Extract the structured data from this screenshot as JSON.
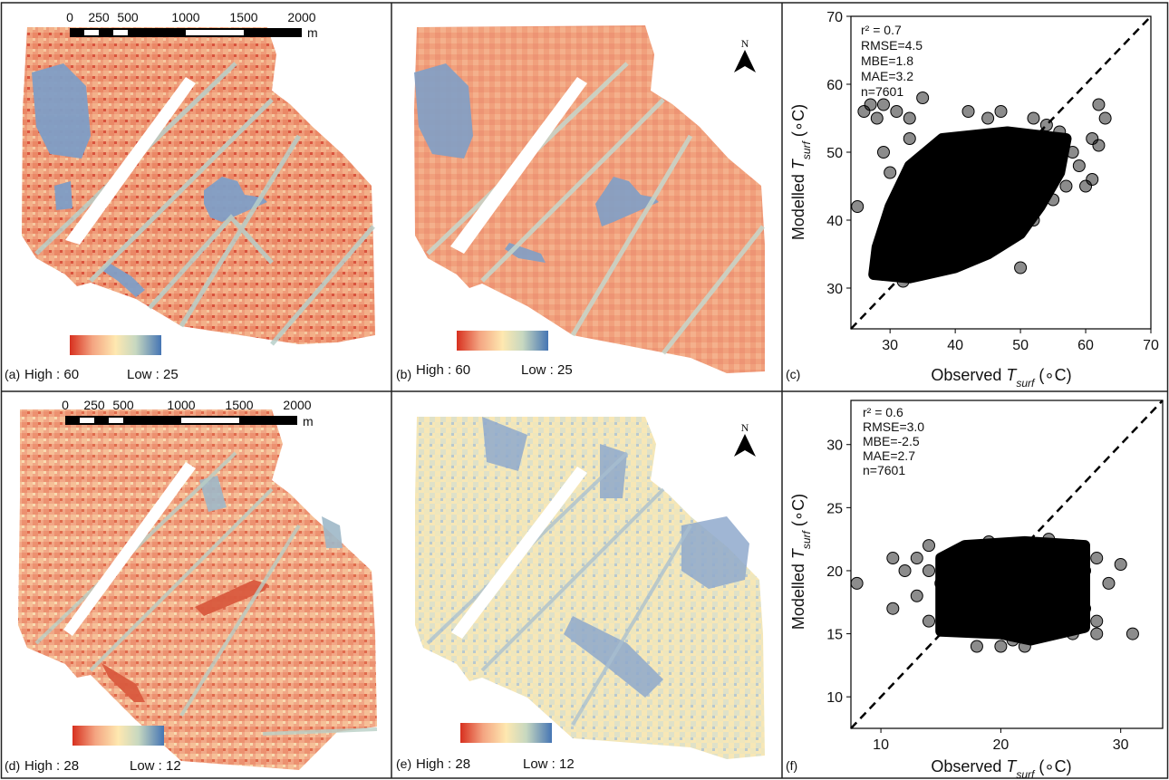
{
  "maps": [
    {
      "id": "a",
      "label": "(a)",
      "legend": {
        "high": "High : 60",
        "low": "Low : 25"
      },
      "scalebar": {
        "ticks": [
          "0",
          "250",
          "500",
          "1000",
          "1500",
          "2000"
        ],
        "unit": "m"
      },
      "north": false,
      "palette": "summer_obs"
    },
    {
      "id": "b",
      "label": "(b)",
      "legend": {
        "high": "High : 60",
        "low": "Low : 25"
      },
      "scalebar": null,
      "north": true,
      "palette": "summer_mod"
    },
    {
      "id": "d",
      "label": "(d)",
      "legend": {
        "high": "High : 28",
        "low": "Low : 12"
      },
      "scalebar": {
        "ticks": [
          "0",
          "250",
          "500",
          "1000",
          "1500",
          "2000"
        ],
        "unit": "m"
      },
      "north": false,
      "palette": "winter_obs"
    },
    {
      "id": "e",
      "label": "(e)",
      "legend": {
        "high": "High : 28",
        "low": "Low : 12"
      },
      "scalebar": null,
      "north": true,
      "palette": "winter_mod"
    }
  ],
  "north_symbol": "N",
  "colors": {
    "ramp": [
      "#d7301f",
      "#f4a582",
      "#fee8b0",
      "#c7d8c0",
      "#4575b4"
    ],
    "scatter": "#000000"
  },
  "chart_data": [
    {
      "id": "c",
      "label": "(c)",
      "type": "scatter",
      "xlabel": {
        "prefix": "Observed ",
        "var": "T",
        "sub": "surf",
        "suffix": " (∘C)"
      },
      "ylabel": {
        "prefix": "Modelled ",
        "var": "T",
        "sub": "surf",
        "suffix": " (∘C)"
      },
      "xlim": [
        24,
        70
      ],
      "ylim": [
        24,
        70
      ],
      "xticks": [
        30,
        40,
        50,
        60,
        70
      ],
      "yticks": [
        30,
        40,
        50,
        60,
        70
      ],
      "stats": {
        "r2": "r² = 0.7",
        "rmse": "RMSE=4.5",
        "mbe": "MBE=1.8",
        "mae": "MAE=3.2",
        "n": "n=7601"
      },
      "one_to_one_line": true,
      "dense_region": [
        [
          27.5,
          32
        ],
        [
          33,
          31.5
        ],
        [
          40,
          33
        ],
        [
          45,
          35
        ],
        [
          50,
          38
        ],
        [
          53,
          42
        ],
        [
          56,
          47
        ],
        [
          57,
          52
        ],
        [
          48,
          53
        ],
        [
          38,
          52
        ],
        [
          33,
          48
        ],
        [
          30,
          42
        ],
        [
          28,
          36
        ]
      ],
      "points": [
        [
          25,
          42
        ],
        [
          26,
          56
        ],
        [
          27,
          57
        ],
        [
          28,
          55
        ],
        [
          29,
          50
        ],
        [
          29,
          57
        ],
        [
          30,
          47
        ],
        [
          31,
          56
        ],
        [
          33,
          52
        ],
        [
          35,
          58
        ],
        [
          33,
          55
        ],
        [
          36,
          49
        ],
        [
          37,
          45
        ],
        [
          34,
          38
        ],
        [
          36,
          33
        ],
        [
          38,
          34
        ],
        [
          40,
          36
        ],
        [
          42,
          35
        ],
        [
          44,
          37
        ],
        [
          46,
          39
        ],
        [
          48,
          38
        ],
        [
          50,
          33
        ],
        [
          52,
          40
        ],
        [
          55,
          43
        ],
        [
          57,
          45
        ],
        [
          59,
          48
        ],
        [
          60,
          45
        ],
        [
          61,
          46
        ],
        [
          62,
          51
        ],
        [
          63,
          55
        ],
        [
          62,
          57
        ],
        [
          61,
          52
        ],
        [
          58,
          50
        ],
        [
          56,
          53
        ],
        [
          54,
          54
        ],
        [
          52,
          55
        ],
        [
          47,
          56
        ],
        [
          45,
          55
        ],
        [
          42,
          56
        ],
        [
          32,
          31
        ],
        [
          31,
          34
        ],
        [
          29,
          32
        ],
        [
          28,
          33
        ],
        [
          55,
          48
        ],
        [
          53,
          44
        ],
        [
          47,
          41
        ],
        [
          44,
          39
        ]
      ]
    },
    {
      "id": "f",
      "label": "(f)",
      "type": "scatter",
      "xlabel": {
        "prefix": "Observed ",
        "var": "T",
        "sub": "surf",
        "suffix": " (∘C)"
      },
      "ylabel": {
        "prefix": "Modelled ",
        "var": "T",
        "sub": "surf",
        "suffix": " (∘C)"
      },
      "xlim": [
        7.5,
        33.5
      ],
      "ylim": [
        7.5,
        33.5
      ],
      "xticks": [
        10,
        20,
        30
      ],
      "yticks": [
        10,
        15,
        20,
        25,
        30
      ],
      "stats": {
        "r2": "r² = 0.6",
        "rmse": "RMSE=3.0",
        "mbe": "MBE=-2.5",
        "mae": "MAE=2.7",
        "n": "n=7601"
      },
      "one_to_one_line": true,
      "dense_region": [
        [
          15,
          15.2
        ],
        [
          20,
          15
        ],
        [
          22.5,
          14.5
        ],
        [
          27,
          15.5
        ],
        [
          27,
          22
        ],
        [
          22,
          22.3
        ],
        [
          17,
          22
        ],
        [
          15,
          21
        ]
      ],
      "points": [
        [
          8,
          19
        ],
        [
          11,
          21
        ],
        [
          11,
          17
        ],
        [
          12,
          20
        ],
        [
          13,
          21
        ],
        [
          13,
          18
        ],
        [
          14,
          22
        ],
        [
          14,
          16
        ],
        [
          15,
          19
        ],
        [
          14,
          20
        ],
        [
          18,
          14
        ],
        [
          20,
          14
        ],
        [
          22,
          14
        ],
        [
          24,
          15
        ],
        [
          26,
          15
        ],
        [
          28,
          15
        ],
        [
          27,
          17
        ],
        [
          28,
          21
        ],
        [
          30,
          20.5
        ],
        [
          31,
          15
        ],
        [
          29,
          19
        ],
        [
          27,
          20
        ],
        [
          26,
          22
        ],
        [
          24,
          22.5
        ],
        [
          28,
          16
        ],
        [
          16,
          17
        ],
        [
          21,
          14.5
        ],
        [
          25,
          16
        ],
        [
          19,
          22.3
        ]
      ]
    }
  ]
}
